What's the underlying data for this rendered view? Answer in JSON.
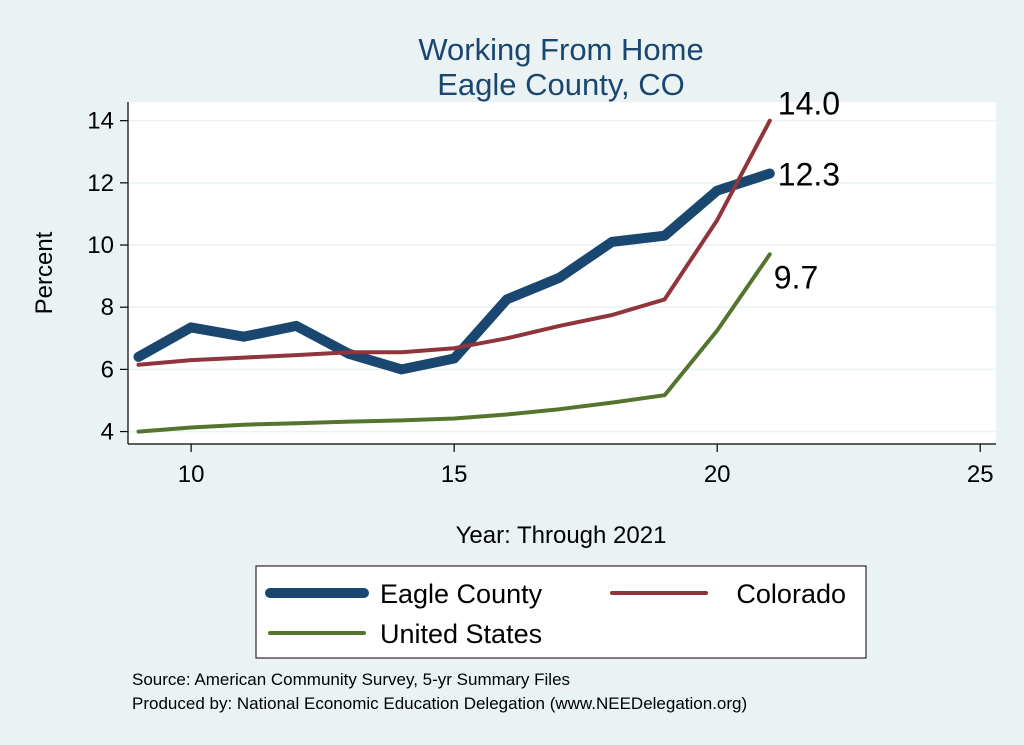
{
  "chart_data": {
    "type": "line",
    "title": [
      "Working From Home",
      "Eagle County, CO"
    ],
    "xlabel": "Year: Through 2021",
    "ylabel": "Percent",
    "xlim": [
      8.8,
      25.3
    ],
    "ylim": [
      3.6,
      14.6
    ],
    "x_ticks": [
      10,
      15,
      20,
      25
    ],
    "y_ticks": [
      4,
      6,
      8,
      10,
      12,
      14
    ],
    "grid": true,
    "legend_position": "bottom",
    "x": [
      9,
      10,
      11,
      12,
      13,
      14,
      15,
      16,
      17,
      18,
      19,
      20,
      21
    ],
    "series": [
      {
        "name": "Eagle County",
        "color": "#1a476f",
        "width": 10,
        "values": [
          6.4,
          7.35,
          7.05,
          7.4,
          6.5,
          6.0,
          6.35,
          8.25,
          8.95,
          10.1,
          10.3,
          11.75,
          12.3
        ],
        "end_label": "12.3"
      },
      {
        "name": "Colorado",
        "color": "#90353b",
        "width": 4,
        "values": [
          6.15,
          6.3,
          6.38,
          6.46,
          6.55,
          6.55,
          6.68,
          7.0,
          7.4,
          7.75,
          8.25,
          10.8,
          14.0
        ],
        "end_label": "14.0"
      },
      {
        "name": "United States",
        "color": "#55752f",
        "width": 4,
        "values": [
          4.0,
          4.13,
          4.22,
          4.27,
          4.32,
          4.36,
          4.42,
          4.55,
          4.72,
          4.93,
          5.17,
          7.25,
          9.7
        ],
        "end_label": "9.7"
      }
    ]
  },
  "notes": [
    "Source: American Community Survey, 5-yr Summary Files",
    "Produced by: National Economic Education Delegation (www.NEEDelegation.org)"
  ]
}
